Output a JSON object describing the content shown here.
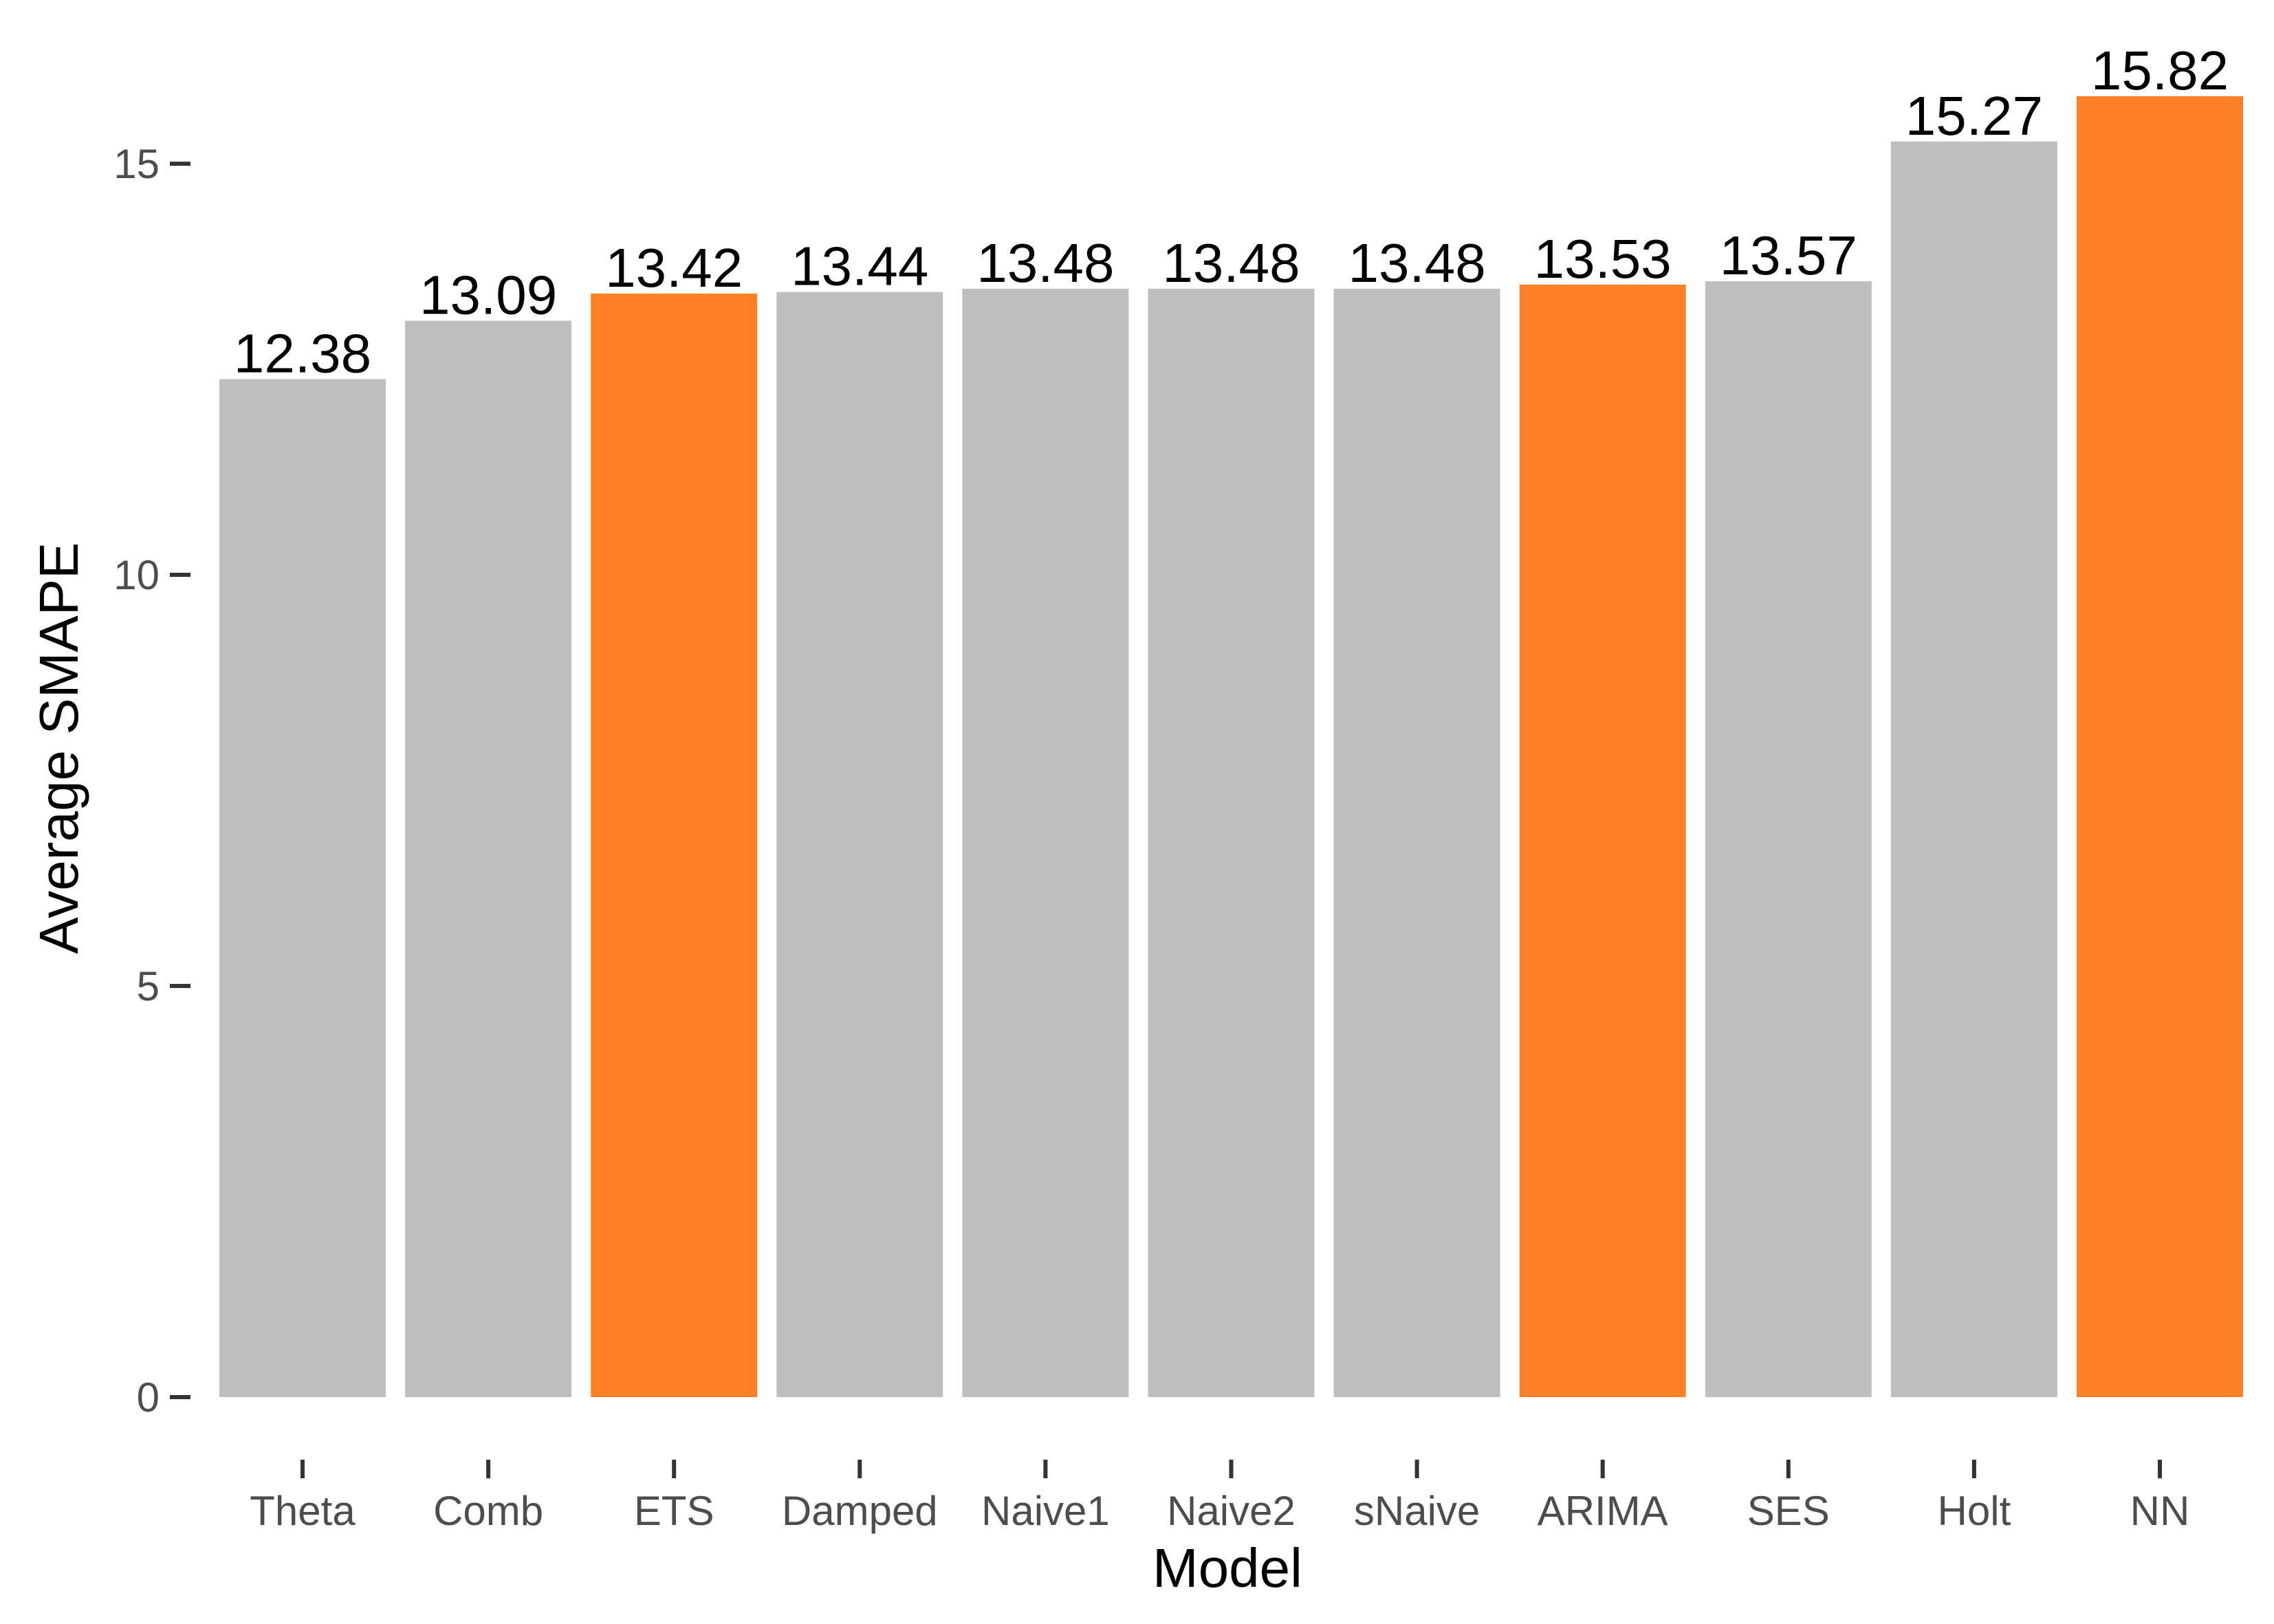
{
  "chart_data": {
    "type": "bar",
    "title": "",
    "xlabel": "Model",
    "ylabel": "Average SMAPE",
    "categories": [
      "Theta",
      "Comb",
      "ETS",
      "Damped",
      "Naive1",
      "Naive2",
      "sNaive",
      "ARIMA",
      "SES",
      "Holt",
      "NN"
    ],
    "values": [
      12.38,
      13.09,
      13.42,
      13.44,
      13.48,
      13.48,
      13.48,
      13.53,
      13.57,
      15.27,
      15.82
    ],
    "value_labels": [
      "12.38",
      "13.09",
      "13.42",
      "13.44",
      "13.48",
      "13.48",
      "13.48",
      "13.53",
      "13.57",
      "15.27",
      "15.82"
    ],
    "highlighted": [
      false,
      false,
      true,
      false,
      false,
      false,
      false,
      true,
      false,
      false,
      true
    ],
    "yticks": [
      0,
      5,
      10,
      15
    ],
    "ytick_labels": [
      "0",
      "5",
      "10",
      "15"
    ],
    "ylim": [
      0,
      15.82
    ],
    "grid": false,
    "legend": "none",
    "colors": {
      "default": "#bebebe",
      "highlight": "#ff7f27"
    }
  }
}
